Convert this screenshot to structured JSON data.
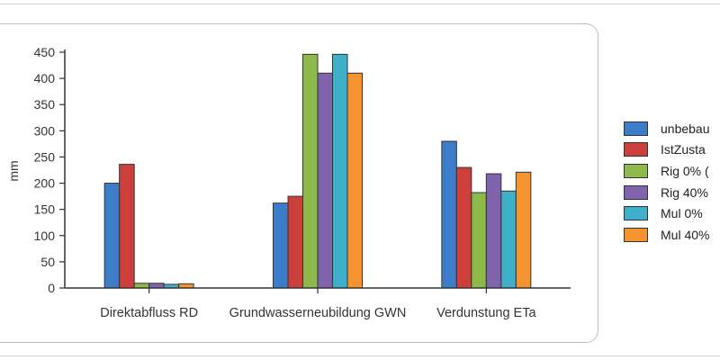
{
  "chart_data": {
    "type": "bar",
    "categories": [
      "Direktabfluss RD",
      "Grundwasserneubildung GWN",
      "Verdunstung ETa"
    ],
    "ylabel": "mm",
    "ylim": [
      0,
      450
    ],
    "yticks": [
      0,
      50,
      100,
      150,
      200,
      250,
      300,
      350,
      400,
      450
    ],
    "grid": false,
    "legend_position": "right",
    "series": [
      {
        "name": "unbebau",
        "color": "#3d7cc9",
        "values": [
          200,
          162,
          280
        ]
      },
      {
        "name": "IstZusta",
        "color": "#cc3f3a",
        "values": [
          236,
          175,
          230
        ]
      },
      {
        "name": "Rig 0% (",
        "color": "#8db84a",
        "values": [
          9,
          446,
          182
        ]
      },
      {
        "name": "Rig 40%",
        "color": "#7f63ad",
        "values": [
          9,
          410,
          218
        ]
      },
      {
        "name": "Mul 0%",
        "color": "#3fb0c9",
        "values": [
          7,
          446,
          185
        ]
      },
      {
        "name": "Mul 40%",
        "color": "#f4932f",
        "values": [
          8,
          410,
          221
        ]
      }
    ]
  }
}
